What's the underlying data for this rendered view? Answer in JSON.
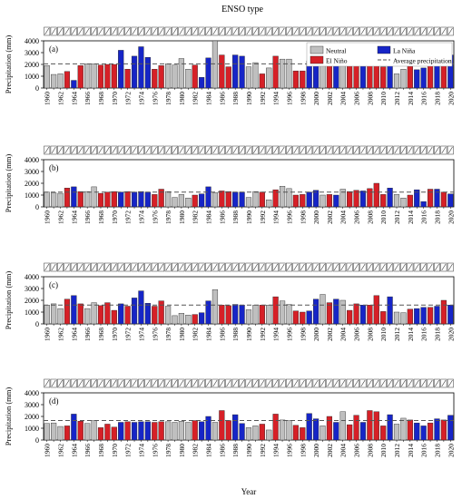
{
  "title": "ENSO type",
  "colors": {
    "neutral": "#bfbfbf",
    "elnino": "#d62027",
    "lanina": "#1625c7",
    "bar_edge": "#222222",
    "avg_line": "#555555"
  },
  "legend": [
    {
      "key": "neutral",
      "label": "Neutral"
    },
    {
      "key": "lanina",
      "label": "La Niña"
    },
    {
      "key": "elnino",
      "label": "El Niño"
    },
    {
      "key": "avg",
      "label": "Average precipitation"
    }
  ],
  "chart_data": [
    {
      "type": "bar",
      "panel_label": "(a)",
      "ylabel": "Precipitation (mm)",
      "xlabel": "",
      "ylim": [
        0,
        4000
      ],
      "yticks": [
        0,
        1000,
        2000,
        3000,
        4000
      ],
      "average": 2050,
      "x": [
        1960,
        1961,
        1962,
        1963,
        1964,
        1965,
        1966,
        1967,
        1968,
        1969,
        1970,
        1971,
        1972,
        1973,
        1974,
        1975,
        1976,
        1977,
        1978,
        1979,
        1980,
        1981,
        1982,
        1983,
        1984,
        1985,
        1986,
        1987,
        1988,
        1989,
        1990,
        1991,
        1992,
        1993,
        1994,
        1995,
        1996,
        1997,
        1998,
        1999,
        2000,
        2001,
        2002,
        2003,
        2004,
        2005,
        2006,
        2007,
        2008,
        2009,
        2010,
        2011,
        2012,
        2013,
        2014,
        2015,
        2016,
        2017,
        2018,
        2019,
        2020
      ],
      "enso": [
        "n",
        "n",
        "n",
        "e",
        "l",
        "e",
        "n",
        "n",
        "e",
        "e",
        "e",
        "l",
        "e",
        "l",
        "l",
        "l",
        "e",
        "e",
        "n",
        "n",
        "n",
        "n",
        "e",
        "l",
        "l",
        "n",
        "e",
        "e",
        "l",
        "l",
        "n",
        "n",
        "e",
        "n",
        "e",
        "n",
        "n",
        "e",
        "e",
        "l",
        "l",
        "n",
        "e",
        "l",
        "n",
        "e",
        "e",
        "l",
        "e",
        "e",
        "e",
        "l",
        "n",
        "n",
        "e",
        "l",
        "l",
        "e",
        "l",
        "e",
        "l"
      ],
      "values": [
        1900,
        1150,
        1200,
        1400,
        650,
        1900,
        2050,
        2050,
        1950,
        2000,
        2000,
        3200,
        1600,
        2700,
        3500,
        2600,
        1600,
        1900,
        2050,
        1950,
        2500,
        1600,
        1950,
        900,
        2550,
        4000,
        2800,
        1800,
        2800,
        2700,
        1800,
        2150,
        1200,
        1700,
        2700,
        2450,
        2450,
        1450,
        1450,
        2300,
        2600,
        2500,
        2000,
        2300,
        2400,
        1850,
        2400,
        1850,
        2450,
        2800,
        1800,
        2800,
        1200,
        1600,
        1850,
        1550,
        1700,
        2200,
        2350,
        2750,
        2800
      ]
    },
    {
      "type": "bar",
      "panel_label": "(b)",
      "ylabel": "Precipitation (mm)",
      "xlabel": "",
      "ylim": [
        0,
        4000
      ],
      "yticks": [
        0,
        1000,
        2000,
        3000,
        4000
      ],
      "average": 1250,
      "x": [
        1960,
        1961,
        1962,
        1963,
        1964,
        1965,
        1966,
        1967,
        1968,
        1969,
        1970,
        1971,
        1972,
        1973,
        1974,
        1975,
        1976,
        1977,
        1978,
        1979,
        1980,
        1981,
        1982,
        1983,
        1984,
        1985,
        1986,
        1987,
        1988,
        1989,
        1990,
        1991,
        1992,
        1993,
        1994,
        1995,
        1996,
        1997,
        1998,
        1999,
        2000,
        2001,
        2002,
        2003,
        2004,
        2005,
        2006,
        2007,
        2008,
        2009,
        2010,
        2011,
        2012,
        2013,
        2014,
        2015,
        2016,
        2017,
        2018,
        2019,
        2020
      ],
      "enso": [
        "n",
        "n",
        "n",
        "e",
        "l",
        "e",
        "n",
        "n",
        "e",
        "e",
        "e",
        "l",
        "e",
        "l",
        "l",
        "l",
        "e",
        "e",
        "n",
        "n",
        "n",
        "n",
        "e",
        "l",
        "l",
        "n",
        "e",
        "e",
        "l",
        "l",
        "n",
        "n",
        "e",
        "n",
        "e",
        "n",
        "n",
        "e",
        "e",
        "l",
        "l",
        "n",
        "e",
        "l",
        "n",
        "e",
        "e",
        "l",
        "e",
        "e",
        "e",
        "l",
        "n",
        "n",
        "e",
        "l",
        "l",
        "e",
        "l",
        "e",
        "l"
      ],
      "values": [
        1250,
        1200,
        1150,
        1600,
        1700,
        1300,
        1300,
        1700,
        1150,
        1250,
        1300,
        1250,
        1300,
        1250,
        1300,
        1250,
        1050,
        1500,
        1300,
        800,
        1050,
        750,
        1000,
        1100,
        1700,
        1200,
        1350,
        1300,
        1250,
        1250,
        800,
        1300,
        1250,
        600,
        1450,
        1750,
        1550,
        1000,
        1050,
        1250,
        1400,
        1000,
        1050,
        1000,
        1500,
        1300,
        1400,
        1350,
        1550,
        2000,
        1050,
        1600,
        1050,
        750,
        1000,
        1450,
        450,
        1500,
        1500,
        1250,
        1100
      ]
    },
    {
      "type": "bar",
      "panel_label": "(c)",
      "ylabel": "Precipitation (mm)",
      "xlabel": "",
      "ylim": [
        0,
        4000
      ],
      "yticks": [
        0,
        1000,
        2000,
        3000,
        4000
      ],
      "average": 1600,
      "x": [
        1960,
        1961,
        1962,
        1963,
        1964,
        1965,
        1966,
        1967,
        1968,
        1969,
        1970,
        1971,
        1972,
        1973,
        1974,
        1975,
        1976,
        1977,
        1978,
        1979,
        1980,
        1981,
        1982,
        1983,
        1984,
        1985,
        1986,
        1987,
        1988,
        1989,
        1990,
        1991,
        1992,
        1993,
        1994,
        1995,
        1996,
        1997,
        1998,
        1999,
        2000,
        2001,
        2002,
        2003,
        2004,
        2005,
        2006,
        2007,
        2008,
        2009,
        2010,
        2011,
        2012,
        2013,
        2014,
        2015,
        2016,
        2017,
        2018,
        2019,
        2020
      ],
      "enso": [
        "n",
        "n",
        "n",
        "e",
        "l",
        "e",
        "n",
        "n",
        "e",
        "e",
        "e",
        "l",
        "e",
        "l",
        "l",
        "l",
        "e",
        "e",
        "n",
        "n",
        "n",
        "n",
        "e",
        "l",
        "l",
        "n",
        "e",
        "e",
        "l",
        "l",
        "n",
        "n",
        "e",
        "n",
        "e",
        "n",
        "n",
        "e",
        "e",
        "l",
        "l",
        "n",
        "e",
        "l",
        "n",
        "e",
        "e",
        "l",
        "e",
        "e",
        "e",
        "l",
        "n",
        "n",
        "e",
        "l",
        "l",
        "e",
        "l",
        "e",
        "l"
      ],
      "values": [
        1600,
        1700,
        1300,
        2100,
        2400,
        1700,
        1300,
        1800,
        1550,
        1800,
        1150,
        1700,
        1500,
        2200,
        2800,
        1750,
        1500,
        1950,
        1500,
        700,
        900,
        750,
        800,
        950,
        1950,
        2900,
        1600,
        1550,
        1650,
        1600,
        1200,
        1600,
        1600,
        1600,
        2300,
        1950,
        1650,
        1100,
        1000,
        1100,
        2100,
        2500,
        1800,
        2100,
        2000,
        1150,
        1700,
        1600,
        1600,
        2400,
        1050,
        2300,
        1000,
        950,
        1250,
        1300,
        1400,
        1400,
        1500,
        2000,
        1600
      ]
    },
    {
      "type": "bar",
      "panel_label": "(d)",
      "ylabel": "Precipitation (mm)",
      "xlabel": "Year",
      "ylim": [
        0,
        4000
      ],
      "yticks": [
        0,
        1000,
        2000,
        3000,
        4000
      ],
      "average": 1650,
      "x": [
        1960,
        1961,
        1962,
        1963,
        1964,
        1965,
        1966,
        1967,
        1968,
        1969,
        1970,
        1971,
        1972,
        1973,
        1974,
        1975,
        1976,
        1977,
        1978,
        1979,
        1980,
        1981,
        1982,
        1983,
        1984,
        1985,
        1986,
        1987,
        1988,
        1989,
        1990,
        1991,
        1992,
        1993,
        1994,
        1995,
        1996,
        1997,
        1998,
        1999,
        2000,
        2001,
        2002,
        2003,
        2004,
        2005,
        2006,
        2007,
        2008,
        2009,
        2010,
        2011,
        2012,
        2013,
        2014,
        2015,
        2016,
        2017,
        2018,
        2019,
        2020
      ],
      "enso": [
        "n",
        "n",
        "n",
        "e",
        "l",
        "e",
        "n",
        "n",
        "e",
        "e",
        "e",
        "l",
        "e",
        "l",
        "l",
        "l",
        "e",
        "e",
        "n",
        "n",
        "n",
        "n",
        "e",
        "l",
        "l",
        "n",
        "e",
        "e",
        "l",
        "l",
        "n",
        "n",
        "e",
        "n",
        "e",
        "n",
        "n",
        "e",
        "e",
        "l",
        "l",
        "n",
        "e",
        "l",
        "n",
        "e",
        "e",
        "l",
        "e",
        "e",
        "e",
        "l",
        "n",
        "n",
        "e",
        "l",
        "l",
        "e",
        "l",
        "e",
        "l"
      ],
      "values": [
        1400,
        1450,
        1150,
        1200,
        2200,
        1600,
        1400,
        1650,
        1050,
        1350,
        1100,
        1500,
        1550,
        1500,
        1550,
        1550,
        1500,
        1550,
        1550,
        1500,
        1600,
        1500,
        1650,
        1550,
        2000,
        1500,
        2500,
        1650,
        2150,
        1400,
        1050,
        1200,
        1350,
        850,
        2200,
        1700,
        1650,
        1250,
        1050,
        2250,
        1800,
        1200,
        2000,
        1500,
        2400,
        1300,
        2100,
        1500,
        2500,
        2400,
        1200,
        2150,
        1350,
        1850,
        1700,
        1450,
        1200,
        1450,
        1800,
        1700,
        2100
      ]
    }
  ],
  "xtick_labels": [
    "1960",
    "1962",
    "1964",
    "1966",
    "1968",
    "1970",
    "1972",
    "1974",
    "1976",
    "1978",
    "1980",
    "1982",
    "1984",
    "1986",
    "1988",
    "1990",
    "1992",
    "1994",
    "1996",
    "1998",
    "2000",
    "2002",
    "2004",
    "2006",
    "2008",
    "2010",
    "2012",
    "2014",
    "2016",
    "2018",
    "2020"
  ]
}
